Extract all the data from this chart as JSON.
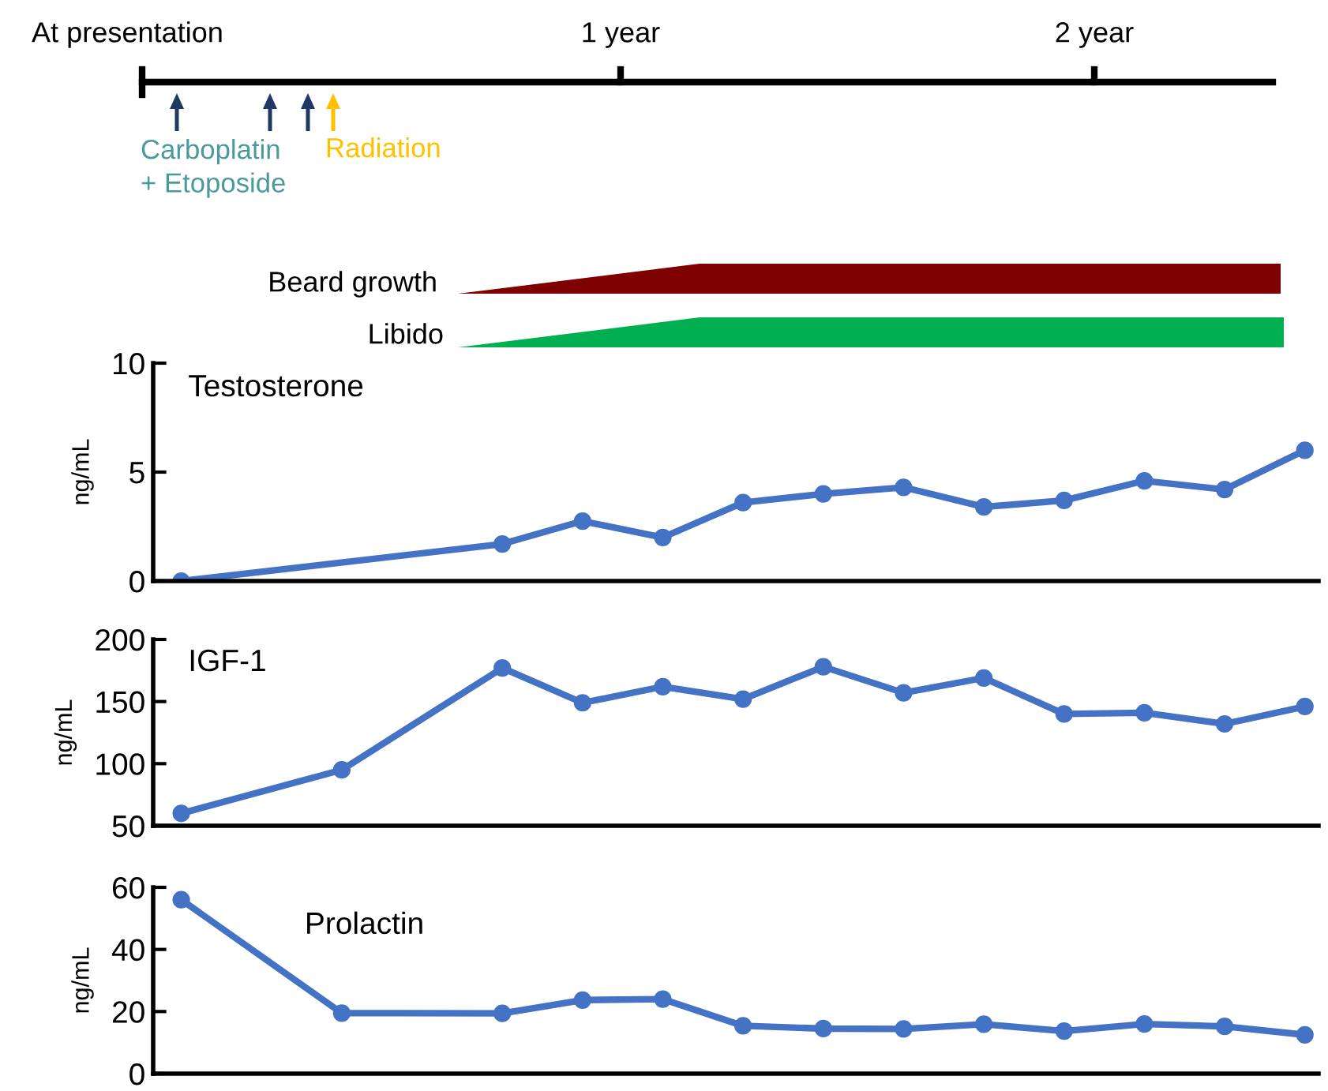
{
  "chart_data": [
    {
      "type": "other",
      "annotations": [
        "At presentation",
        "1 year",
        "2 year",
        "Carboplatin\n+ Etoposide",
        "Radiation",
        "Beard growth",
        "Libido"
      ]
    },
    {
      "type": "line",
      "title": "Testosterone",
      "ylabel": "ng/mL",
      "ylim": [
        0,
        10
      ],
      "yticks": [
        0,
        5,
        10
      ],
      "marker": "circle",
      "tick_labels": "y",
      "categories": [
        null,
        null,
        null,
        null,
        null,
        null,
        null,
        null,
        null,
        null,
        null,
        null,
        null,
        null,
        null
      ],
      "series": [
        {
          "color": "#4472c4",
          "values": [
            0,
            null,
            null,
            null,
            1.7,
            2.75,
            2.0,
            3.6,
            4.0,
            4.3,
            3.4,
            3.7,
            4.6,
            4.2,
            6.0
          ]
        }
      ]
    },
    {
      "type": "line",
      "title": "IGF-1",
      "ylabel": "ng/mL",
      "ylim": [
        50,
        200
      ],
      "yticks": [
        50,
        100,
        150,
        200
      ],
      "marker": "circle",
      "tick_labels": "y",
      "categories": [
        null,
        null,
        null,
        null,
        null,
        null,
        null,
        null,
        null,
        null,
        null,
        null,
        null,
        null,
        null
      ],
      "series": [
        {
          "color": "#4472c4",
          "values": [
            60,
            null,
            95,
            null,
            177,
            149,
            162,
            152,
            178,
            157,
            169,
            140,
            141,
            132,
            146
          ]
        }
      ]
    },
    {
      "type": "line",
      "title": "Prolactin",
      "ylabel": "ng/mL",
      "ylim": [
        0,
        60
      ],
      "yticks": [
        0,
        20,
        40,
        60
      ],
      "marker": "circle",
      "tick_labels": "y",
      "categories": [
        null,
        null,
        null,
        null,
        null,
        null,
        null,
        null,
        null,
        null,
        null,
        null,
        null,
        null,
        null
      ],
      "series": [
        {
          "color": "#4472c4",
          "values": [
            56,
            null,
            19.5,
            null,
            19.4,
            23.7,
            24,
            15.4,
            14.5,
            14.4,
            15.9,
            13.7,
            16,
            15.2,
            12.5
          ]
        }
      ]
    }
  ]
}
